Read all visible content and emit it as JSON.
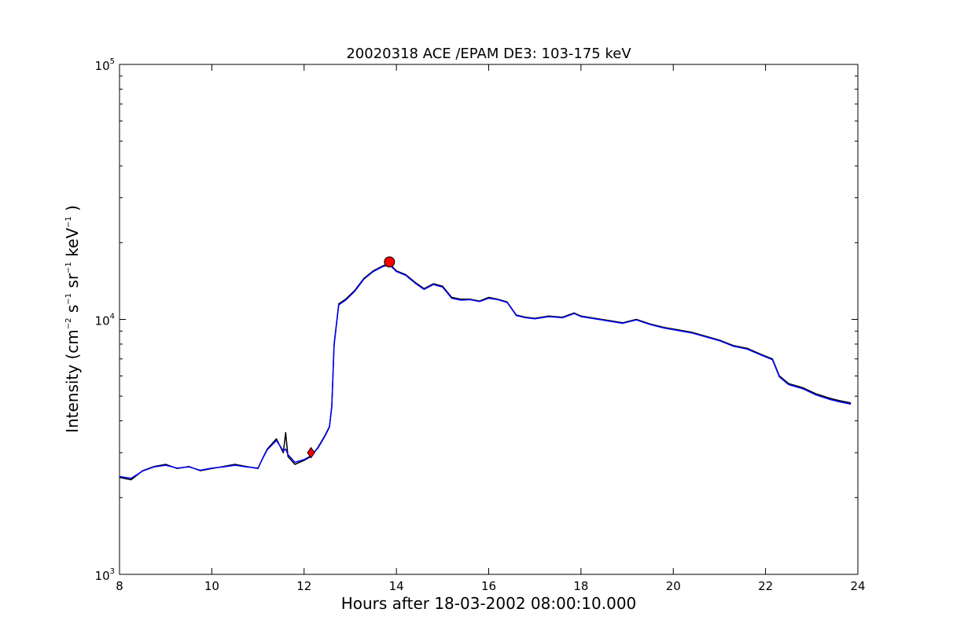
{
  "chart_data": {
    "type": "line",
    "title": "20020318 ACE /EPAM DE3: 103-175 keV",
    "xlabel": "Hours after 18-03-2002 08:00:10.000",
    "ylabel": {
      "main": "Intensity (cm",
      "exp1": "−2",
      "s": " s",
      "exp2": "−1",
      "sr": " sr",
      "exp3": "−1",
      "kev": " keV",
      "exp4": "−1",
      "close": " )"
    },
    "xlim": [
      8,
      24
    ],
    "ylim": [
      1000,
      100000
    ],
    "yscale": "log",
    "grid": false,
    "x_ticks": [
      {
        "value": 8,
        "label": "8"
      },
      {
        "value": 10,
        "label": "10"
      },
      {
        "value": 12,
        "label": "12"
      },
      {
        "value": 14,
        "label": "14"
      },
      {
        "value": 16,
        "label": "16"
      },
      {
        "value": 18,
        "label": "18"
      },
      {
        "value": 20,
        "label": "20"
      },
      {
        "value": 22,
        "label": "22"
      },
      {
        "value": 24,
        "label": "24"
      }
    ],
    "y_ticks": [
      {
        "value": 1000,
        "base": "10",
        "exp": "3"
      },
      {
        "value": 10000,
        "base": "10",
        "exp": "4"
      },
      {
        "value": 100000,
        "base": "10",
        "exp": "5"
      }
    ],
    "series": [
      {
        "color": "#000000",
        "x": [
          8.0,
          8.25,
          8.5,
          8.75,
          9.0,
          9.25,
          9.5,
          9.75,
          10.0,
          10.25,
          10.5,
          10.75,
          11.0,
          11.1,
          11.2,
          11.4,
          11.55,
          11.6,
          11.65,
          11.8,
          12.0,
          12.15,
          12.3,
          12.45,
          12.55,
          12.6,
          12.65,
          12.75,
          12.9,
          13.1,
          13.3,
          13.5,
          13.7,
          13.85,
          14.0,
          14.2,
          14.4,
          14.6,
          14.8,
          15.0,
          15.2,
          15.4,
          15.6,
          15.8,
          16.0,
          16.2,
          16.4,
          16.6,
          16.8,
          17.0,
          17.3,
          17.6,
          17.85,
          18.0,
          18.3,
          18.6,
          18.9,
          19.2,
          19.5,
          19.8,
          20.1,
          20.4,
          20.7,
          21.0,
          21.3,
          21.6,
          21.9,
          22.15,
          22.3,
          22.5,
          22.8,
          23.1,
          23.4,
          23.6,
          23.85
        ],
        "y": [
          2400,
          2350,
          2550,
          2650,
          2700,
          2600,
          2650,
          2550,
          2600,
          2650,
          2700,
          2650,
          2600,
          2850,
          3100,
          3400,
          3000,
          3600,
          2900,
          2700,
          2800,
          2900,
          3150,
          3500,
          3800,
          4600,
          8000,
          11500,
          12000,
          13000,
          14500,
          15500,
          16200,
          16500,
          15500,
          15000,
          14000,
          13200,
          13800,
          13500,
          12200,
          12000,
          12000,
          11800,
          12200,
          12000,
          11700,
          10400,
          10200,
          10100,
          10300,
          10200,
          10600,
          10300,
          10100,
          9900,
          9700,
          10000,
          9600,
          9300,
          9100,
          8900,
          8600,
          8300,
          7900,
          7700,
          7300,
          7000,
          6000,
          5600,
          5400,
          5100,
          4900,
          4800,
          4700
        ]
      },
      {
        "color": "#0000ff",
        "x": [
          8.0,
          8.25,
          8.5,
          8.75,
          9.0,
          9.25,
          9.5,
          9.75,
          10.0,
          10.25,
          10.5,
          10.75,
          11.0,
          11.1,
          11.2,
          11.4,
          11.55,
          11.6,
          11.65,
          11.8,
          12.0,
          12.15,
          12.3,
          12.45,
          12.55,
          12.6,
          12.65,
          12.75,
          12.9,
          13.1,
          13.3,
          13.5,
          13.7,
          13.85,
          14.0,
          14.2,
          14.4,
          14.6,
          14.8,
          15.0,
          15.2,
          15.4,
          15.6,
          15.8,
          16.0,
          16.2,
          16.4,
          16.6,
          16.8,
          17.0,
          17.3,
          17.6,
          17.85,
          18.0,
          18.3,
          18.6,
          18.9,
          19.2,
          19.5,
          19.8,
          20.1,
          20.4,
          20.7,
          21.0,
          21.3,
          21.6,
          21.9,
          22.15,
          22.3,
          22.5,
          22.8,
          23.1,
          23.4,
          23.6,
          23.85
        ],
        "y": [
          2420,
          2380,
          2540,
          2640,
          2680,
          2610,
          2640,
          2560,
          2610,
          2640,
          2680,
          2640,
          2610,
          2840,
          3080,
          3350,
          3050,
          3100,
          2950,
          2750,
          2820,
          2920,
          3130,
          3480,
          3780,
          4550,
          7900,
          11400,
          11900,
          12900,
          14400,
          15400,
          16100,
          16400,
          15400,
          14900,
          13900,
          13100,
          13700,
          13400,
          12100,
          11900,
          11950,
          11750,
          12100,
          11950,
          11650,
          10350,
          10150,
          10050,
          10250,
          10150,
          10550,
          10250,
          10050,
          9850,
          9650,
          9950,
          9550,
          9250,
          9050,
          8850,
          8550,
          8250,
          7850,
          7650,
          7250,
          6950,
          5950,
          5550,
          5350,
          5050,
          4850,
          4750,
          4650
        ]
      }
    ],
    "markers": [
      {
        "shape": "diamond",
        "color": "#ff0000",
        "x": 12.15,
        "y": 3000
      },
      {
        "shape": "circle",
        "color": "#ff0000",
        "x": 13.85,
        "y": 16800
      }
    ]
  }
}
